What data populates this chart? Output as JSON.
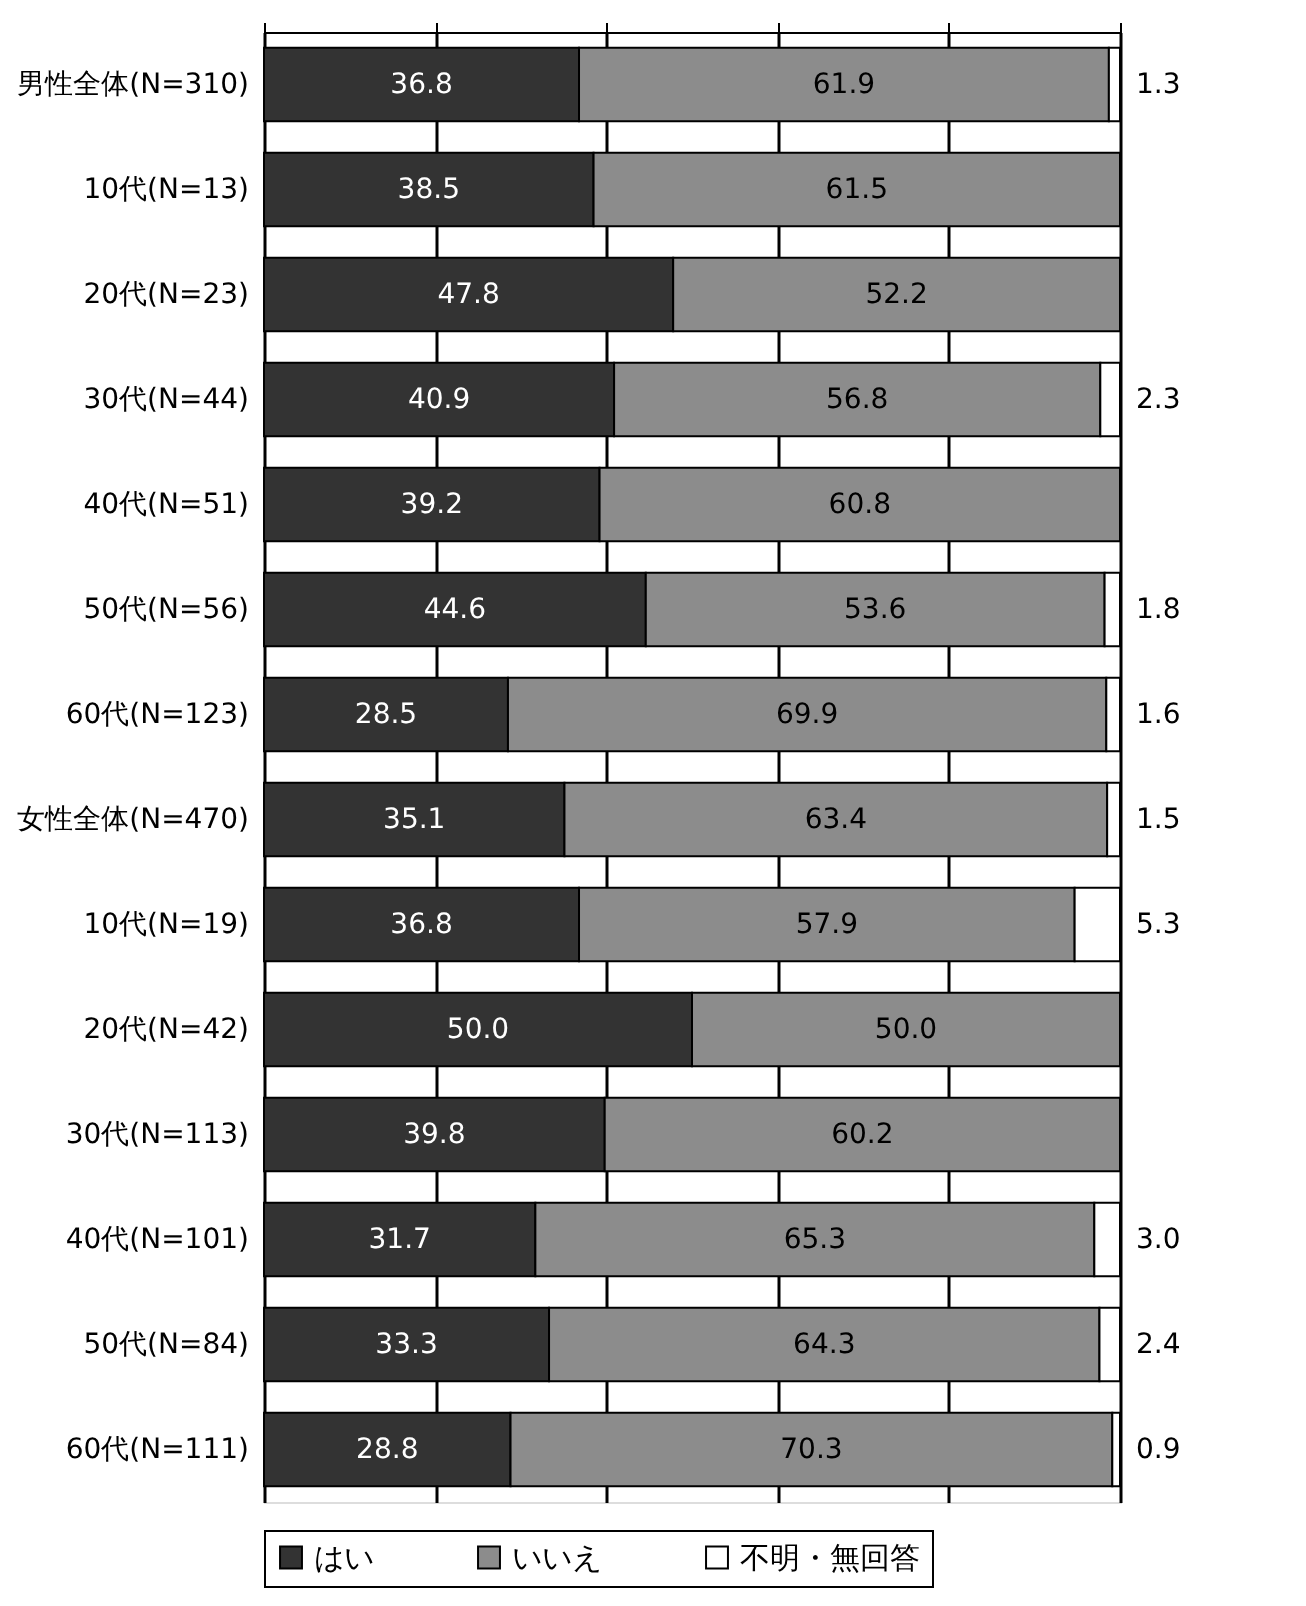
{
  "chart_data": {
    "type": "bar",
    "orientation": "horizontal",
    "stacked": true,
    "categories": [
      "男性全体(N=310)",
      "10代(N=13)",
      "20代(N=23)",
      "30代(N=44)",
      "40代(N=51)",
      "50代(N=56)",
      "60代(N=123)",
      "女性全体(N=470)",
      "10代(N=19)",
      "20代(N=42)",
      "30代(N=113)",
      "40代(N=101)",
      "50代(N=84)",
      "60代(N=111)"
    ],
    "series": [
      {
        "name": "はい",
        "color": "#333333",
        "values": [
          36.8,
          38.5,
          47.8,
          40.9,
          39.2,
          44.6,
          28.5,
          35.1,
          36.8,
          50.0,
          39.8,
          31.7,
          33.3,
          28.8
        ],
        "value_labels": [
          "36.8",
          "38.5",
          "47.8",
          "40.9",
          "39.2",
          "44.6",
          "28.5",
          "35.1",
          "36.8",
          "50.0",
          "39.8",
          "31.7",
          "33.3",
          "28.8"
        ]
      },
      {
        "name": "いいえ",
        "color": "#8c8c8c",
        "values": [
          61.9,
          61.5,
          52.2,
          56.8,
          60.8,
          53.6,
          69.9,
          63.4,
          57.9,
          50.0,
          60.2,
          65.3,
          64.3,
          70.3
        ],
        "value_labels": [
          "61.9",
          "61.5",
          "52.2",
          "56.8",
          "60.8",
          "53.6",
          "69.9",
          "63.4",
          "57.9",
          "50.0",
          "60.2",
          "65.3",
          "64.3",
          "70.3"
        ]
      },
      {
        "name": "不明・無回答",
        "color": "#ffffff",
        "values": [
          1.3,
          0,
          0,
          2.3,
          0,
          1.8,
          1.6,
          1.5,
          5.3,
          0,
          0,
          3.0,
          2.4,
          0.9
        ],
        "value_labels": [
          "1.3",
          null,
          null,
          "2.3",
          null,
          "1.8",
          "1.6",
          "1.5",
          "5.3",
          null,
          null,
          "3.0",
          "2.4",
          "0.9"
        ]
      }
    ],
    "xlim": [
      0,
      100
    ],
    "xticks": [
      {
        "value": 0,
        "label": null
      },
      {
        "value": 20,
        "label": null
      },
      {
        "value": 40,
        "label": null
      },
      {
        "value": 60,
        "label": null
      },
      {
        "value": 80,
        "label": null
      },
      {
        "value": 100,
        "label": null
      }
    ],
    "tick_labels": "y",
    "grid": "x",
    "legend": "bottom"
  }
}
